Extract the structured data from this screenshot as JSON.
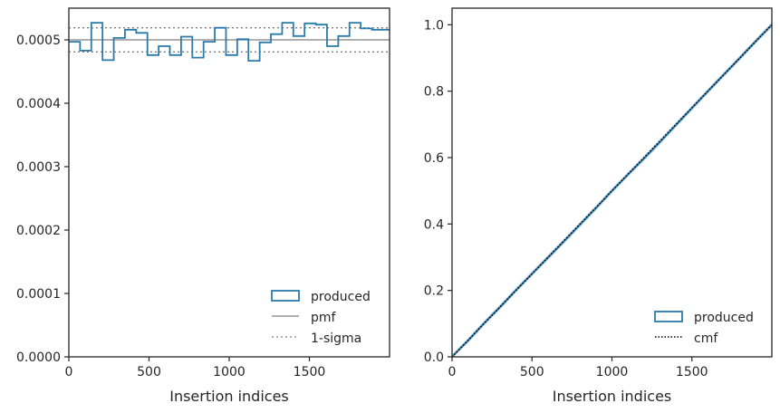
{
  "colors": {
    "produced": "#2a7bab",
    "produced_fill": "#bcd6e8",
    "pmf": "#808080",
    "sigma": "#808080",
    "cmf": "#000000",
    "frame": "#262626"
  },
  "chart_data": [
    {
      "type": "histogram",
      "xlabel": "Insertion indices",
      "ylabel": "",
      "xlim": [
        0,
        2000
      ],
      "ylim": [
        0,
        0.00055
      ],
      "x_ticks": [
        0,
        500,
        1000,
        1500
      ],
      "x_tick_labels": [
        "0",
        "500",
        "1000",
        "1500"
      ],
      "y_ticks": [
        0,
        0.0001,
        0.0002,
        0.0003,
        0.0004,
        0.0005
      ],
      "y_tick_labels": [
        "0.0000",
        "0.0001",
        "0.0002",
        "0.0003",
        "0.0004",
        "0.0005"
      ],
      "bin_edges": [
        0,
        70,
        140,
        210,
        280,
        350,
        420,
        490,
        560,
        630,
        700,
        770,
        840,
        910,
        980,
        1050,
        1120,
        1190,
        1260,
        1330,
        1400,
        1470,
        1540,
        1610,
        1680,
        1750,
        1820,
        1890,
        1960,
        2000
      ],
      "series": [
        {
          "name": "produced",
          "values": [
            0.000497,
            0.000483,
            0.000527,
            0.000468,
            0.000503,
            0.000516,
            0.000511,
            0.000476,
            0.00049,
            0.000476,
            0.000505,
            0.000472,
            0.000497,
            0.000519,
            0.000476,
            0.000501,
            0.000467,
            0.000496,
            0.000509,
            0.000527,
            0.000506,
            0.000526,
            0.000524,
            0.00049,
            0.000506,
            0.000527,
            0.000518,
            0.000516,
            0.000516
          ]
        },
        {
          "name": "pmf",
          "value": 0.0005
        },
        {
          "name": "1-sigma",
          "values": [
            0.000519,
            0.000481
          ]
        }
      ],
      "legend": {
        "position": "lower right",
        "entries": [
          "produced",
          "pmf",
          "1-sigma"
        ]
      }
    },
    {
      "type": "line",
      "xlabel": "Insertion indices",
      "ylabel": "",
      "xlim": [
        0,
        2000
      ],
      "ylim": [
        0,
        1.05
      ],
      "x_ticks": [
        0,
        500,
        1000,
        1500
      ],
      "x_tick_labels": [
        "0",
        "500",
        "1000",
        "1500"
      ],
      "y_ticks": [
        0,
        0.2,
        0.4,
        0.6,
        0.8,
        1.0
      ],
      "y_tick_labels": [
        "0.0",
        "0.2",
        "0.4",
        "0.6",
        "0.8",
        "1.0"
      ],
      "series": [
        {
          "name": "produced",
          "x": [
            0,
            100,
            200,
            300,
            400,
            500,
            600,
            700,
            800,
            900,
            1000,
            1100,
            1200,
            1300,
            1400,
            1500,
            1600,
            1700,
            1800,
            1900,
            2000
          ],
          "y": [
            0,
            0.049,
            0.101,
            0.15,
            0.201,
            0.25,
            0.299,
            0.348,
            0.398,
            0.448,
            0.5,
            0.549,
            0.597,
            0.647,
            0.698,
            0.749,
            0.8,
            0.85,
            0.9,
            0.951,
            1.0
          ]
        },
        {
          "name": "cmf",
          "x": [
            0,
            2000
          ],
          "y": [
            0,
            1.0
          ]
        }
      ],
      "legend": {
        "position": "lower right",
        "entries": [
          "produced",
          "cmf"
        ]
      }
    }
  ]
}
